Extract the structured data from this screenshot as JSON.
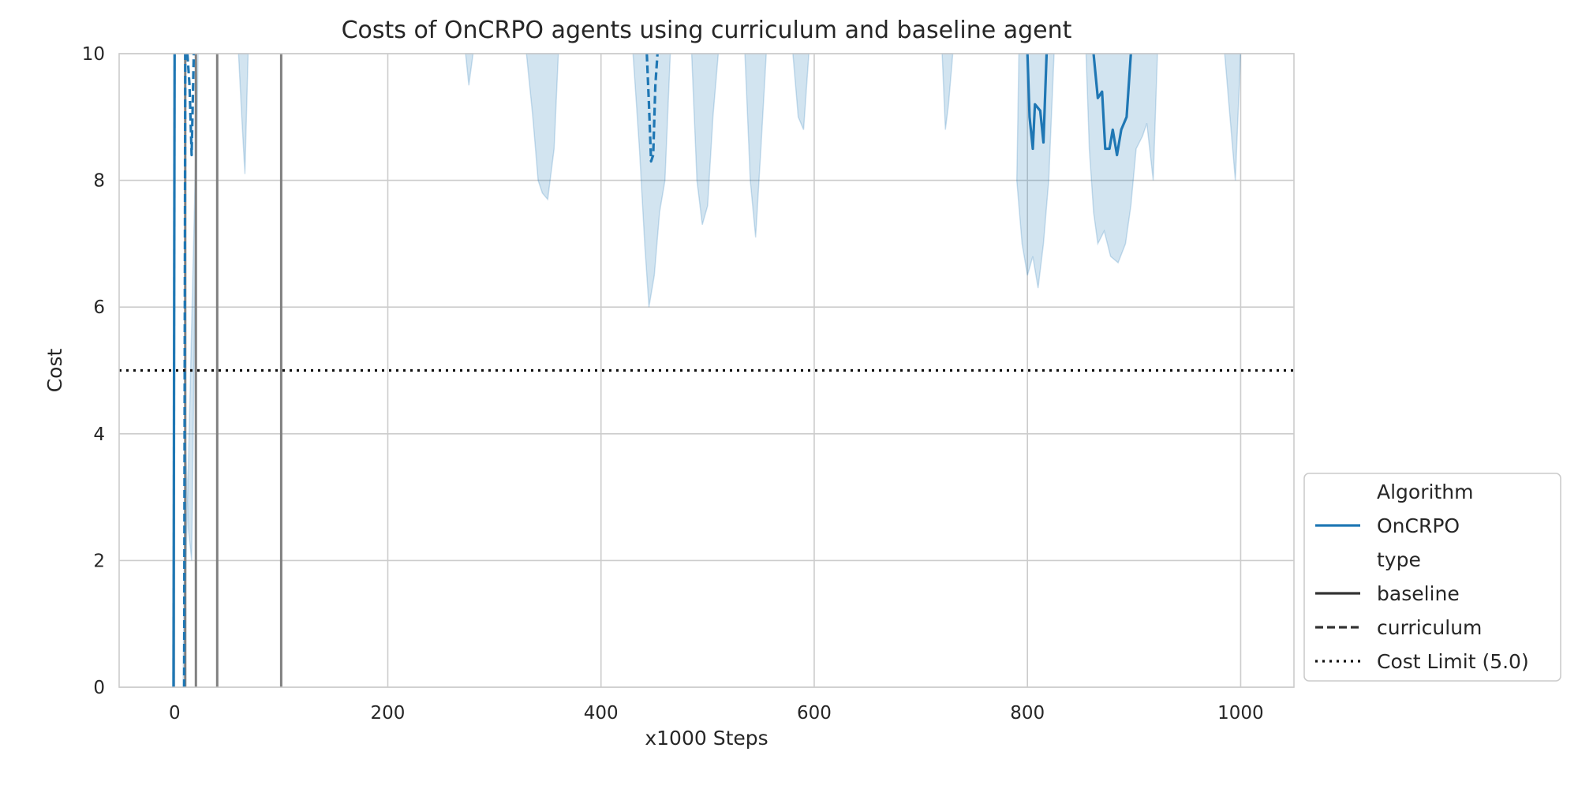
{
  "chart_data": {
    "type": "line",
    "title": "Costs of OnCRPO agents using curriculum and baseline agent",
    "xlabel": "x1000 Steps",
    "ylabel": "Cost",
    "xlim": [
      -52,
      1050
    ],
    "ylim": [
      0,
      10
    ],
    "x_ticks": [
      0,
      200,
      400,
      600,
      800,
      1000
    ],
    "y_ticks": [
      0,
      2,
      4,
      6,
      8,
      10
    ],
    "grid": true,
    "legend_position": "lower-right, outside plot area",
    "colors": {
      "oncrpo": "#1f77b4",
      "band": "#1f77b4",
      "vlines": "#808080",
      "cost_limit": "#111111",
      "grid": "#cccccc"
    },
    "cost_limit": {
      "value": 5.0,
      "label": "Cost Limit (5.0)"
    },
    "vertical_lines_x": [
      10,
      20,
      40,
      100
    ],
    "legend": [
      {
        "kind": "header",
        "label": "Algorithm"
      },
      {
        "kind": "solid-blue",
        "label": "OnCRPO"
      },
      {
        "kind": "header",
        "label": "type"
      },
      {
        "kind": "solid-dark",
        "label": "baseline"
      },
      {
        "kind": "dashed-dark",
        "label": "curriculum"
      },
      {
        "kind": "dotted-dark",
        "label": "Cost Limit (5.0)"
      }
    ],
    "series": [
      {
        "name": "OnCRPO",
        "type_label": "baseline",
        "style": "solid",
        "segments": [
          [
            [
              -1,
              0
            ],
            [
              0,
              10
            ]
          ],
          [
            [
              800,
              10
            ],
            [
              802,
              9.0
            ],
            [
              805,
              8.5
            ],
            [
              807,
              9.2
            ],
            [
              812,
              9.1
            ],
            [
              815,
              8.6
            ],
            [
              818,
              10
            ]
          ],
          [
            [
              862,
              10
            ],
            [
              866,
              9.3
            ],
            [
              870,
              9.4
            ],
            [
              873,
              8.5
            ],
            [
              877,
              8.5
            ],
            [
              880,
              8.8
            ],
            [
              884,
              8.4
            ],
            [
              888,
              8.8
            ],
            [
              893,
              9.0
            ],
            [
              897,
              10
            ]
          ]
        ],
        "band": [
          [
            [
              0,
              10
            ],
            [
              0,
              0
            ]
          ],
          [
            [
              792,
              10
            ],
            [
              790,
              8.0
            ],
            [
              795,
              7.0
            ],
            [
              800,
              6.5
            ],
            [
              805,
              6.8
            ],
            [
              810,
              6.3
            ],
            [
              815,
              7.0
            ],
            [
              820,
              8.0
            ],
            [
              825,
              10
            ]
          ],
          [
            [
              855,
              10
            ],
            [
              858,
              8.5
            ],
            [
              862,
              7.5
            ],
            [
              866,
              7.0
            ],
            [
              872,
              7.2
            ],
            [
              878,
              6.8
            ],
            [
              885,
              6.7
            ],
            [
              892,
              7.0
            ],
            [
              897,
              7.6
            ],
            [
              902,
              8.5
            ],
            [
              908,
              8.7
            ],
            [
              912,
              8.9
            ],
            [
              918,
              8.0
            ],
            [
              922,
              10
            ]
          ]
        ]
      },
      {
        "name": "OnCRPO",
        "type_label": "curriculum",
        "style": "dashed",
        "segments": [
          [
            [
              9,
              0
            ],
            [
              10,
              10
            ]
          ],
          [
            [
              12,
              10
            ],
            [
              14,
              9.5
            ],
            [
              16,
              8.4
            ],
            [
              18,
              10
            ]
          ],
          [
            [
              443,
              10
            ],
            [
              445,
              9.2
            ],
            [
              447,
              8.3
            ],
            [
              449,
              8.4
            ],
            [
              451,
              9.5
            ],
            [
              453,
              10
            ]
          ]
        ],
        "band": [
          [
            [
              8,
              0
            ],
            [
              10,
              4.0
            ],
            [
              13,
              2.5
            ],
            [
              16,
              2.0
            ],
            [
              19,
              6.0
            ],
            [
              22,
              10
            ]
          ],
          [
            [
              60,
              10
            ],
            [
              63,
              9.0
            ],
            [
              66,
              8.1
            ],
            [
              69,
              10
            ]
          ],
          [
            [
              273,
              10
            ],
            [
              276,
              9.5
            ],
            [
              280,
              10
            ]
          ],
          [
            [
              330,
              10
            ],
            [
              336,
              9.0
            ],
            [
              341,
              8.0
            ],
            [
              345,
              7.8
            ],
            [
              350,
              7.7
            ],
            [
              356,
              8.5
            ],
            [
              360,
              10
            ]
          ],
          [
            [
              430,
              10
            ],
            [
              436,
              8.5
            ],
            [
              441,
              7.0
            ],
            [
              445,
              6.0
            ],
            [
              450,
              6.5
            ],
            [
              455,
              7.5
            ],
            [
              460,
              8.0
            ],
            [
              465,
              10
            ]
          ],
          [
            [
              485,
              10
            ],
            [
              490,
              8.0
            ],
            [
              495,
              7.3
            ],
            [
              500,
              7.6
            ],
            [
              505,
              9.0
            ],
            [
              510,
              10
            ]
          ],
          [
            [
              535,
              10
            ],
            [
              540,
              8.0
            ],
            [
              545,
              7.1
            ],
            [
              550,
              8.5
            ],
            [
              555,
              10
            ]
          ],
          [
            [
              580,
              10
            ],
            [
              585,
              9.0
            ],
            [
              590,
              8.8
            ],
            [
              595,
              10
            ]
          ],
          [
            [
              720,
              10
            ],
            [
              723,
              8.8
            ],
            [
              726,
              9.2
            ],
            [
              730,
              10
            ]
          ],
          [
            [
              985,
              10
            ],
            [
              990,
              9.0
            ],
            [
              995,
              8.0
            ],
            [
              1000,
              10
            ]
          ]
        ]
      }
    ]
  }
}
